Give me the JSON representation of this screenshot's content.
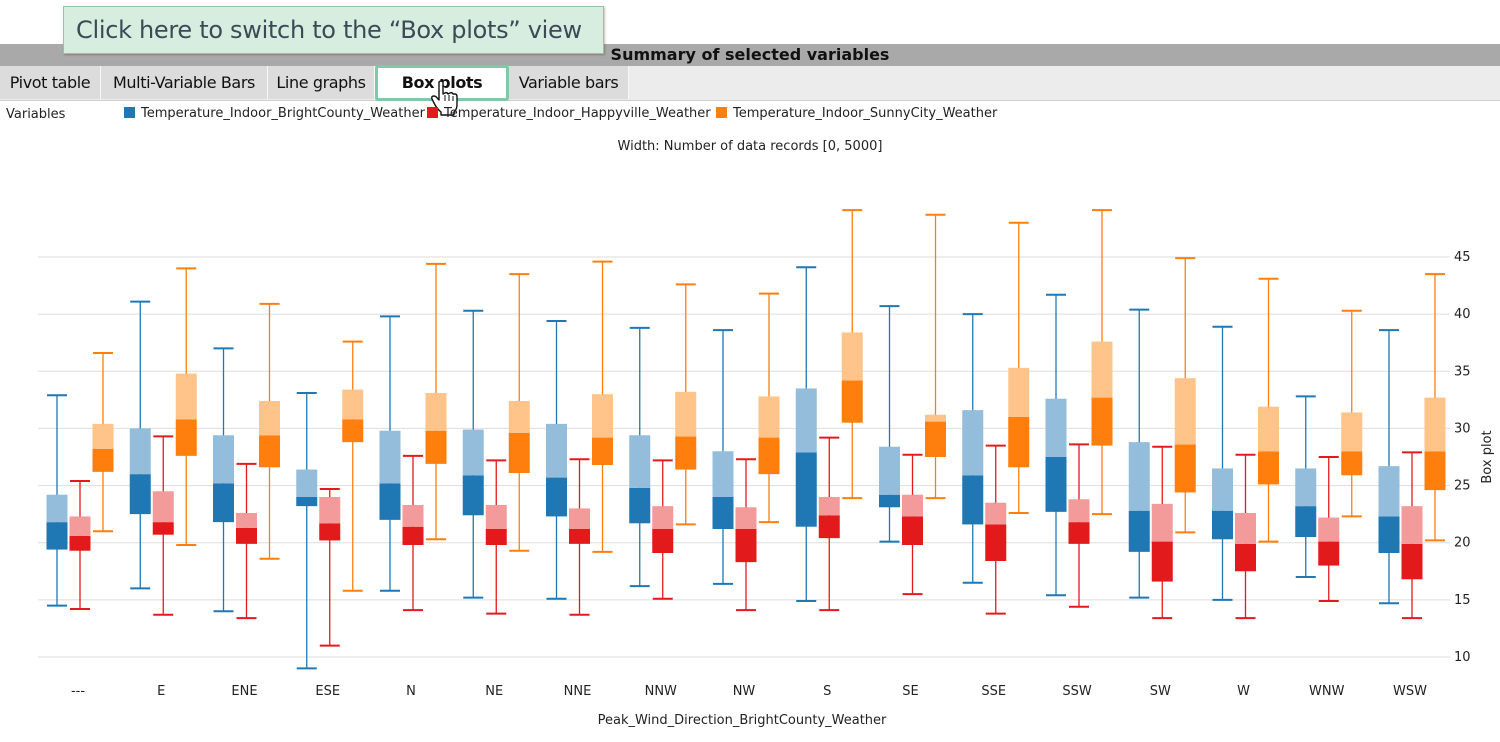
{
  "callout": {
    "text": "Click here to switch to the “Box plots” view"
  },
  "panel": {
    "title": "Summary of selected variables"
  },
  "tabs": [
    {
      "label": "Pivot table",
      "active": false
    },
    {
      "label": "Multi-Variable Bars",
      "active": false
    },
    {
      "label": "Line graphs",
      "active": false
    },
    {
      "label": "Box plots",
      "active": true
    },
    {
      "label": "Variable bars",
      "active": false
    }
  ],
  "variables_label": "Variables",
  "legend": [
    {
      "name": "Temperature_Indoor_BrightCounty_Weather",
      "color": "#1f77b4"
    },
    {
      "name": "Temperature_Indoor_Happyville_Weather",
      "color": "#e31a1c"
    },
    {
      "name": "Temperature_Indoor_SunnyCity_Weather",
      "color": "#ff7f0e"
    }
  ],
  "width_note": "Width:  Number of data records  [0, 5000]",
  "colors": {
    "series": [
      "#1f77b4",
      "#e31a1c",
      "#ff7f0e"
    ],
    "upper_box": [
      "#93bddb",
      "#f39a9b",
      "#ffc48a"
    ],
    "grid": "#dddddd",
    "callout_bg": "#d7ede0",
    "active_tab_border": "#7fc8a9"
  },
  "chart_data": {
    "type": "boxplot",
    "xlabel": "Peak_Wind_Direction_BrightCounty_Weather",
    "ylabel": "Box plot",
    "ylim": [
      8,
      49.5
    ],
    "yticks": [
      10,
      15,
      20,
      25,
      30,
      35,
      40,
      45
    ],
    "grid": true,
    "legend_position": "top",
    "categories": [
      "---",
      "E",
      "ENE",
      "ESE",
      "N",
      "NE",
      "NNE",
      "NNW",
      "NW",
      "S",
      "SE",
      "SSE",
      "SSW",
      "SW",
      "W",
      "WNW",
      "WSW"
    ],
    "series": [
      {
        "name": "Temperature_Indoor_BrightCounty_Weather",
        "boxes": [
          [
            14.5,
            19.4,
            21.8,
            24.2,
            32.9
          ],
          [
            16.0,
            22.5,
            26.0,
            30.0,
            41.1
          ],
          [
            14.0,
            21.8,
            25.2,
            29.4,
            37.0
          ],
          [
            9.0,
            23.2,
            24.0,
            26.4,
            33.1
          ],
          [
            15.8,
            22.0,
            25.2,
            29.8,
            39.8
          ],
          [
            15.2,
            22.4,
            25.9,
            29.9,
            40.3
          ],
          [
            15.1,
            22.3,
            25.7,
            30.4,
            39.4
          ],
          [
            16.2,
            21.7,
            24.8,
            29.4,
            38.8
          ],
          [
            16.4,
            21.2,
            24.0,
            28.0,
            38.6
          ],
          [
            14.9,
            21.4,
            27.9,
            33.5,
            44.1
          ],
          [
            20.1,
            23.1,
            24.2,
            28.4,
            40.7
          ],
          [
            16.5,
            21.6,
            25.9,
            31.6,
            40.0
          ],
          [
            15.4,
            22.7,
            27.5,
            32.6,
            41.7
          ],
          [
            15.2,
            19.2,
            22.8,
            28.8,
            40.4
          ],
          [
            15.0,
            20.3,
            22.8,
            26.5,
            38.9
          ],
          [
            17.0,
            20.5,
            23.2,
            26.5,
            32.8
          ],
          [
            14.7,
            19.1,
            22.3,
            26.7,
            38.6
          ]
        ]
      },
      {
        "name": "Temperature_Indoor_Happyville_Weather",
        "boxes": [
          [
            14.2,
            19.3,
            20.6,
            22.3,
            25.4
          ],
          [
            13.7,
            20.7,
            21.8,
            24.5,
            29.3
          ],
          [
            13.4,
            19.9,
            21.3,
            22.6,
            26.9
          ],
          [
            11.0,
            20.2,
            21.7,
            24.0,
            24.7
          ],
          [
            14.1,
            19.8,
            21.4,
            23.3,
            27.6
          ],
          [
            13.8,
            19.8,
            21.2,
            23.3,
            27.2
          ],
          [
            13.7,
            19.9,
            21.2,
            23.0,
            27.3
          ],
          [
            15.1,
            19.1,
            21.2,
            23.2,
            27.2
          ],
          [
            14.1,
            18.3,
            21.2,
            23.1,
            27.3
          ],
          [
            14.1,
            20.4,
            22.4,
            24.0,
            29.2
          ],
          [
            15.5,
            19.8,
            22.3,
            24.2,
            27.7
          ],
          [
            13.8,
            18.4,
            21.6,
            23.5,
            28.5
          ],
          [
            14.4,
            19.9,
            21.8,
            23.8,
            28.6
          ],
          [
            13.4,
            16.6,
            20.1,
            23.4,
            28.4
          ],
          [
            13.4,
            17.5,
            19.9,
            22.6,
            27.7
          ],
          [
            14.9,
            18.0,
            20.1,
            22.2,
            27.5
          ],
          [
            13.4,
            16.8,
            19.9,
            23.2,
            27.9
          ]
        ]
      },
      {
        "name": "Temperature_Indoor_SunnyCity_Weather",
        "boxes": [
          [
            21.0,
            26.2,
            28.2,
            30.4,
            36.6
          ],
          [
            19.8,
            27.6,
            30.8,
            34.8,
            44.0
          ],
          [
            18.6,
            26.6,
            29.4,
            32.4,
            40.9
          ],
          [
            15.8,
            28.8,
            30.8,
            33.4,
            37.6
          ],
          [
            20.3,
            26.9,
            29.8,
            33.1,
            44.4
          ],
          [
            19.3,
            26.1,
            29.6,
            32.4,
            43.5
          ],
          [
            19.2,
            26.8,
            29.2,
            33.0,
            44.6
          ],
          [
            21.6,
            26.4,
            29.3,
            33.2,
            42.6
          ],
          [
            21.8,
            26.0,
            29.2,
            32.8,
            41.8
          ],
          [
            23.9,
            30.5,
            34.2,
            38.4,
            49.1
          ],
          [
            23.9,
            27.5,
            30.6,
            31.2,
            48.7
          ],
          [
            22.6,
            26.6,
            31.0,
            35.3,
            48.0
          ],
          [
            22.5,
            28.5,
            32.7,
            37.6,
            49.1
          ],
          [
            20.9,
            24.4,
            28.6,
            34.4,
            44.9
          ],
          [
            20.1,
            25.1,
            28.0,
            31.9,
            43.1
          ],
          [
            22.3,
            25.9,
            28.0,
            31.4,
            40.3
          ],
          [
            20.2,
            24.6,
            28.0,
            32.7,
            43.5
          ]
        ]
      }
    ]
  }
}
